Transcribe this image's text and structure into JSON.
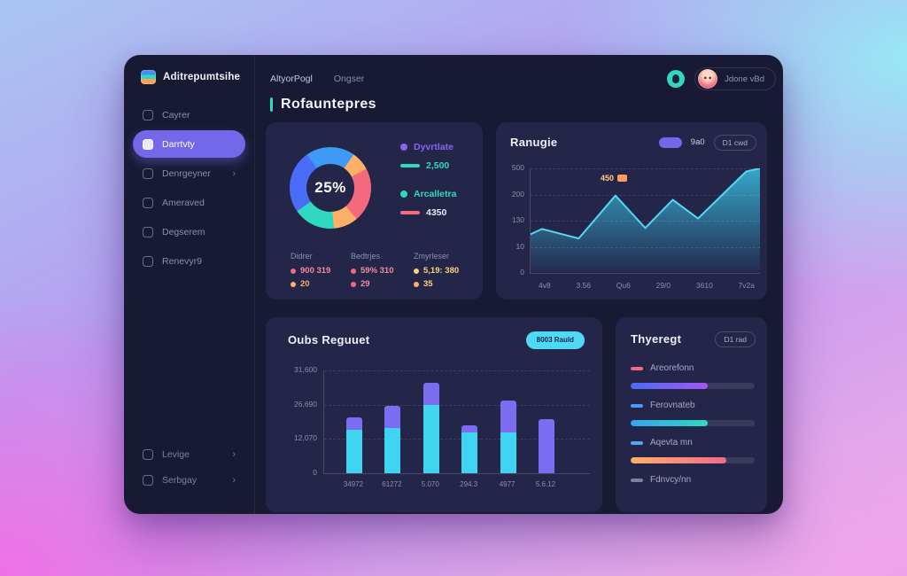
{
  "app": {
    "logo_text": "Aditrepumtsihe",
    "nav_links": [
      "AltyorPogl",
      "Ongser"
    ],
    "user_name": "Jdone vBd",
    "page_title": "Rofauntepres"
  },
  "sidebar": {
    "items": [
      {
        "label": "Cayrer",
        "active": false,
        "chevron": false
      },
      {
        "label": "Darrtvty",
        "active": true,
        "chevron": false
      },
      {
        "label": "Denrgeyner",
        "active": false,
        "chevron": true
      },
      {
        "label": "Ameraved",
        "active": false,
        "chevron": false
      },
      {
        "label": "Degserem",
        "active": false,
        "chevron": false
      },
      {
        "label": "Renevyr9",
        "active": false,
        "chevron": false
      }
    ],
    "footer_items": [
      {
        "label": "Levige",
        "chevron": true
      },
      {
        "label": "Serbgay",
        "chevron": true
      }
    ]
  },
  "donut_card": {
    "center_value": "25%",
    "legend": [
      {
        "marker": "dot",
        "color": "#8a63f0",
        "label": "Dyvrtlate",
        "text_color": "#8a63f0",
        "group_gap": false
      },
      {
        "marker": "dash",
        "color": "#2fd9c0",
        "label": "2,500",
        "text_color": "#2fd9c0",
        "group_gap": false
      },
      {
        "marker": "dot",
        "color": "#2fd9c0",
        "label": "Arcalletra",
        "text_color": "#2fd9c0",
        "group_gap": true
      },
      {
        "marker": "dash",
        "color": "#f4697c",
        "label": "4350",
        "text_color": "#e8eaf6",
        "group_gap": false
      }
    ],
    "stats": [
      {
        "label": "Didrer",
        "rows": [
          {
            "dot": "#f4697c",
            "text": "900 319",
            "color": "#f48b9e"
          },
          {
            "dot": "#ffb067",
            "text": "20",
            "color": "#ffb067"
          }
        ]
      },
      {
        "label": "Bedtrjes",
        "rows": [
          {
            "dot": "#f4697c",
            "text": "59% 310",
            "color": "#f48b9e"
          },
          {
            "dot": "#f4697c",
            "text": "29",
            "color": "#f48b9e"
          }
        ]
      },
      {
        "label": "Zmyrleser",
        "rows": [
          {
            "dot": "#ffd27d",
            "text": "5,19: 380",
            "color": "#ffd27d"
          },
          {
            "dot": "#ffb067",
            "text": "35",
            "color": "#ffd27d"
          }
        ]
      }
    ]
  },
  "line_card": {
    "title": "Ranugie",
    "badge_label": "9a0",
    "button_label": "D1 cwd",
    "tooltip": "450"
  },
  "bar_card": {
    "title": "Oubs Reguuet",
    "button_label": "8003 Rauld"
  },
  "progress_card": {
    "title": "Thyeregt",
    "button_label": "D1 rad",
    "rows": [
      {
        "label": "Areorefonn",
        "tick": "#f4697c",
        "has_bar": true,
        "fill_pct": 62,
        "from": "#4a6cf7",
        "to": "#a158f2"
      },
      {
        "label": "Ferovnateb",
        "tick": "#4a9af7",
        "has_bar": true,
        "fill_pct": 62,
        "from": "#3aa0f0",
        "to": "#2fd9c0"
      },
      {
        "label": "Aqevta mn",
        "tick": "#55a8f0",
        "has_bar": true,
        "fill_pct": 77,
        "from": "#ffb067",
        "to": "#f4698a"
      },
      {
        "label": "Fdnvcy/nn",
        "tick": "#7d8199",
        "has_bar": false,
        "fill_pct": 0,
        "from": "",
        "to": ""
      }
    ]
  },
  "chart_data": [
    {
      "type": "pie",
      "title": "Donut share",
      "center_label": "25%",
      "segments": [
        {
          "label": "blue-top",
          "color": "#3d9bf5",
          "start_deg": -35,
          "end_deg": 35
        },
        {
          "label": "orange-upper",
          "color": "#ffb067",
          "start_deg": 35,
          "end_deg": 62
        },
        {
          "label": "coral-right",
          "color": "#f4697c",
          "start_deg": 62,
          "end_deg": 140
        },
        {
          "label": "orange-lower",
          "color": "#ffb067",
          "start_deg": 140,
          "end_deg": 175
        },
        {
          "label": "teal-bottom",
          "color": "#2fd9c0",
          "start_deg": 175,
          "end_deg": 235
        },
        {
          "label": "indigo-left",
          "color": "#4a6cf7",
          "start_deg": 235,
          "end_deg": 325
        }
      ]
    },
    {
      "type": "area",
      "title": "Ranugie",
      "y_labels": [
        "500",
        "200",
        "130",
        "10",
        "0"
      ],
      "x_labels": [
        "4v8",
        "3.56",
        "Qu6",
        "29/0",
        "3610",
        "7v2a"
      ],
      "points": [
        [
          0,
          37
        ],
        [
          5,
          42
        ],
        [
          21,
          33
        ],
        [
          37,
          74
        ],
        [
          50,
          43
        ],
        [
          62,
          70
        ],
        [
          73,
          52
        ],
        [
          94,
          97
        ],
        [
          100,
          100
        ]
      ],
      "tooltip": {
        "label": "450",
        "x_pct": 37
      },
      "line_color": "#54d8f2",
      "fill_from": "rgba(56,190,224,0.85)",
      "fill_to": "rgba(56,190,224,0.03)",
      "grid": true,
      "legend_position": "none"
    },
    {
      "type": "bar",
      "stacked": true,
      "title": "Oubs Reguuet",
      "y_labels": [
        "31,600",
        "26,690",
        "12,070",
        "0"
      ],
      "x_labels": [
        "34972",
        "61272",
        "5.070",
        "294.3",
        "4977",
        "5.6.12"
      ],
      "series": [
        {
          "name": "cyan",
          "color": "#3fd4f2",
          "values_pct": [
            42,
            44,
            66,
            40,
            40,
            0
          ]
        },
        {
          "name": "purple",
          "color": "#7b6cf0",
          "values_pct": [
            12,
            22,
            22,
            7,
            31,
            53
          ]
        }
      ],
      "grid": true
    }
  ]
}
